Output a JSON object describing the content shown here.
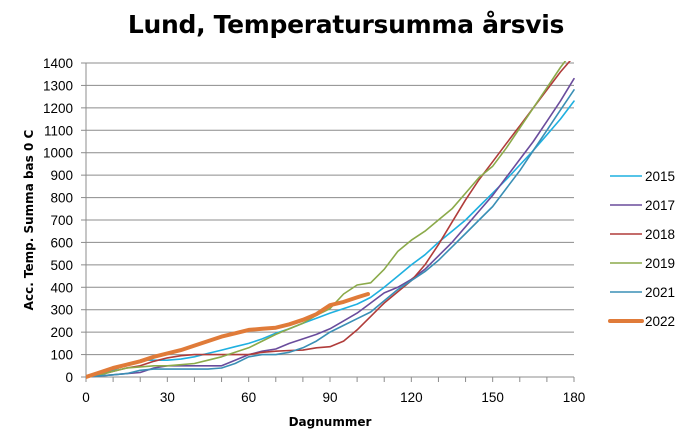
{
  "chart_data": {
    "type": "line",
    "title": "Lund, Temperatursumma årsvis",
    "xlabel": "Dagnummer",
    "ylabel": "Acc. Temp. Summa bas 0 C",
    "xlim": [
      0,
      180
    ],
    "ylim": [
      0,
      1400
    ],
    "xticks": [
      0,
      30,
      60,
      90,
      120,
      150,
      180
    ],
    "yticks": [
      0,
      100,
      200,
      300,
      400,
      500,
      600,
      700,
      800,
      900,
      1000,
      1100,
      1200,
      1300,
      1400
    ],
    "grid": "horizontal",
    "legend_position": "right",
    "series": [
      {
        "name": "2015",
        "color": "#1FB0E0",
        "width": 1.6,
        "x": [
          0,
          5,
          10,
          15,
          20,
          25,
          30,
          35,
          40,
          45,
          50,
          55,
          60,
          65,
          70,
          75,
          80,
          85,
          90,
          95,
          100,
          105,
          110,
          115,
          120,
          125,
          130,
          135,
          140,
          145,
          150,
          155,
          160,
          165,
          170,
          175,
          180
        ],
        "y": [
          0,
          15,
          30,
          55,
          75,
          75,
          75,
          80,
          90,
          105,
          120,
          135,
          150,
          170,
          195,
          215,
          240,
          262,
          285,
          305,
          325,
          355,
          400,
          450,
          500,
          545,
          600,
          650,
          700,
          760,
          820,
          880,
          945,
          1010,
          1080,
          1150,
          1230
        ]
      },
      {
        "name": "2017",
        "color": "#6A4C9C",
        "width": 1.6,
        "x": [
          0,
          5,
          10,
          15,
          20,
          25,
          30,
          35,
          40,
          45,
          50,
          55,
          60,
          65,
          70,
          75,
          80,
          85,
          90,
          95,
          100,
          105,
          110,
          115,
          120,
          125,
          130,
          135,
          140,
          145,
          150,
          155,
          160,
          165,
          170,
          175,
          180
        ],
        "y": [
          0,
          5,
          10,
          15,
          20,
          40,
          50,
          50,
          50,
          50,
          50,
          75,
          100,
          115,
          125,
          150,
          170,
          190,
          215,
          250,
          285,
          330,
          375,
          400,
          435,
          480,
          540,
          600,
          670,
          740,
          810,
          890,
          970,
          1050,
          1140,
          1230,
          1330
        ]
      },
      {
        "name": "2018",
        "color": "#B03C3A",
        "width": 1.6,
        "x": [
          0,
          5,
          10,
          15,
          20,
          25,
          30,
          35,
          40,
          45,
          50,
          55,
          60,
          65,
          70,
          75,
          80,
          85,
          90,
          95,
          100,
          105,
          110,
          115,
          120,
          125,
          130,
          135,
          140,
          145,
          150,
          155,
          160,
          165,
          170,
          175,
          180
        ],
        "y": [
          0,
          10,
          25,
          40,
          50,
          70,
          85,
          95,
          100,
          100,
          100,
          100,
          100,
          110,
          115,
          118,
          120,
          130,
          135,
          160,
          210,
          270,
          330,
          380,
          430,
          500,
          590,
          690,
          790,
          880,
          960,
          1040,
          1120,
          1200,
          1280,
          1360,
          1430
        ]
      },
      {
        "name": "2019",
        "color": "#8BAA4A",
        "width": 1.6,
        "x": [
          0,
          5,
          10,
          15,
          20,
          25,
          30,
          35,
          40,
          45,
          50,
          55,
          60,
          65,
          70,
          75,
          80,
          85,
          90,
          95,
          100,
          105,
          110,
          115,
          120,
          125,
          130,
          135,
          140,
          145,
          150,
          155,
          160,
          165,
          170,
          175,
          180
        ],
        "y": [
          0,
          10,
          25,
          40,
          45,
          50,
          50,
          55,
          60,
          75,
          90,
          110,
          130,
          160,
          190,
          215,
          240,
          275,
          305,
          370,
          410,
          420,
          480,
          560,
          610,
          650,
          700,
          750,
          820,
          890,
          940,
          1020,
          1110,
          1200,
          1290,
          1380,
          1460
        ]
      },
      {
        "name": "2021",
        "color": "#3A8FB5",
        "width": 1.6,
        "x": [
          0,
          5,
          10,
          15,
          20,
          25,
          30,
          35,
          40,
          45,
          50,
          55,
          60,
          65,
          70,
          75,
          80,
          85,
          90,
          95,
          100,
          105,
          110,
          115,
          120,
          125,
          130,
          135,
          140,
          145,
          150,
          155,
          160,
          165,
          170,
          175,
          180
        ],
        "y": [
          0,
          5,
          10,
          15,
          30,
          35,
          35,
          35,
          35,
          35,
          40,
          60,
          90,
          100,
          100,
          110,
          130,
          160,
          200,
          230,
          260,
          290,
          340,
          390,
          430,
          470,
          520,
          580,
          640,
          700,
          760,
          840,
          920,
          1010,
          1100,
          1190,
          1280
        ]
      },
      {
        "name": "2022",
        "color": "#E07B39",
        "width": 4,
        "x": [
          0,
          5,
          10,
          15,
          20,
          25,
          30,
          35,
          40,
          45,
          50,
          55,
          60,
          65,
          70,
          75,
          80,
          85,
          90,
          95,
          100,
          104
        ],
        "y": [
          0,
          20,
          40,
          55,
          70,
          90,
          105,
          120,
          140,
          160,
          180,
          195,
          210,
          215,
          220,
          235,
          255,
          280,
          320,
          335,
          355,
          370
        ]
      }
    ]
  }
}
